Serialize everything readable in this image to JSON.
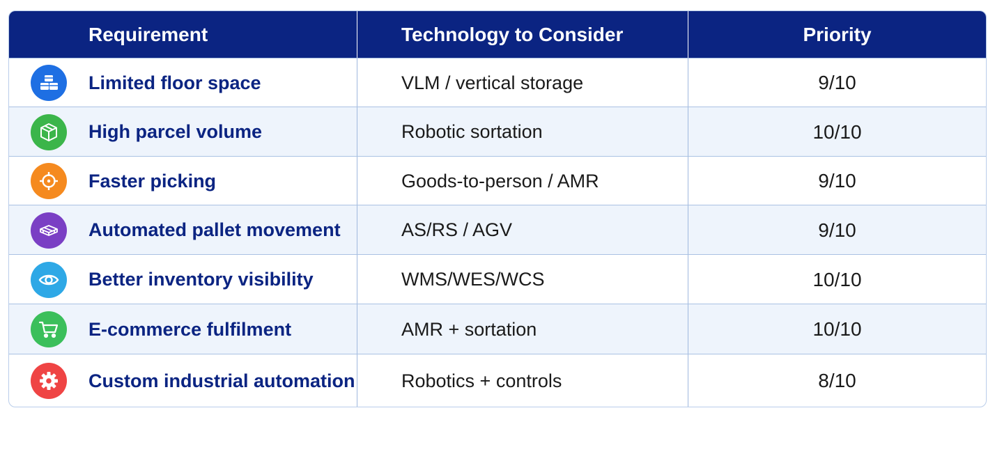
{
  "table": {
    "headers": {
      "requirement": "Requirement",
      "technology": "Technology to Consider",
      "priority": "Priority"
    },
    "rows": [
      {
        "icon": "storage-boxes-icon",
        "icon_color": "#1e6fe3",
        "requirement": "Limited floor space",
        "technology": "VLM / vertical storage",
        "priority": "9/10"
      },
      {
        "icon": "parcel-box-icon",
        "icon_color": "#3bb54a",
        "requirement": "High parcel volume",
        "technology": "Robotic sortation",
        "priority": "10/10"
      },
      {
        "icon": "crosshair-target-icon",
        "icon_color": "#f58a1f",
        "requirement": "Faster picking",
        "technology": "Goods-to-person / AMR",
        "priority": "9/10"
      },
      {
        "icon": "pallet-icon",
        "icon_color": "#7a3fc4",
        "requirement": "Automated pallet movement",
        "technology": "AS/RS / AGV",
        "priority": "9/10"
      },
      {
        "icon": "eye-icon",
        "icon_color": "#2ea8e6",
        "requirement": "Better inventory visibility",
        "technology": "WMS/WES/WCS",
        "priority": "10/10"
      },
      {
        "icon": "shopping-cart-icon",
        "icon_color": "#3bbf5b",
        "requirement": "E-commerce fulfilment",
        "technology": "AMR + sortation",
        "priority": "10/10"
      },
      {
        "icon": "gear-icon",
        "icon_color": "#ef4444",
        "requirement": "Custom industrial automation",
        "technology": "Robotics + controls",
        "priority": "8/10"
      }
    ]
  }
}
